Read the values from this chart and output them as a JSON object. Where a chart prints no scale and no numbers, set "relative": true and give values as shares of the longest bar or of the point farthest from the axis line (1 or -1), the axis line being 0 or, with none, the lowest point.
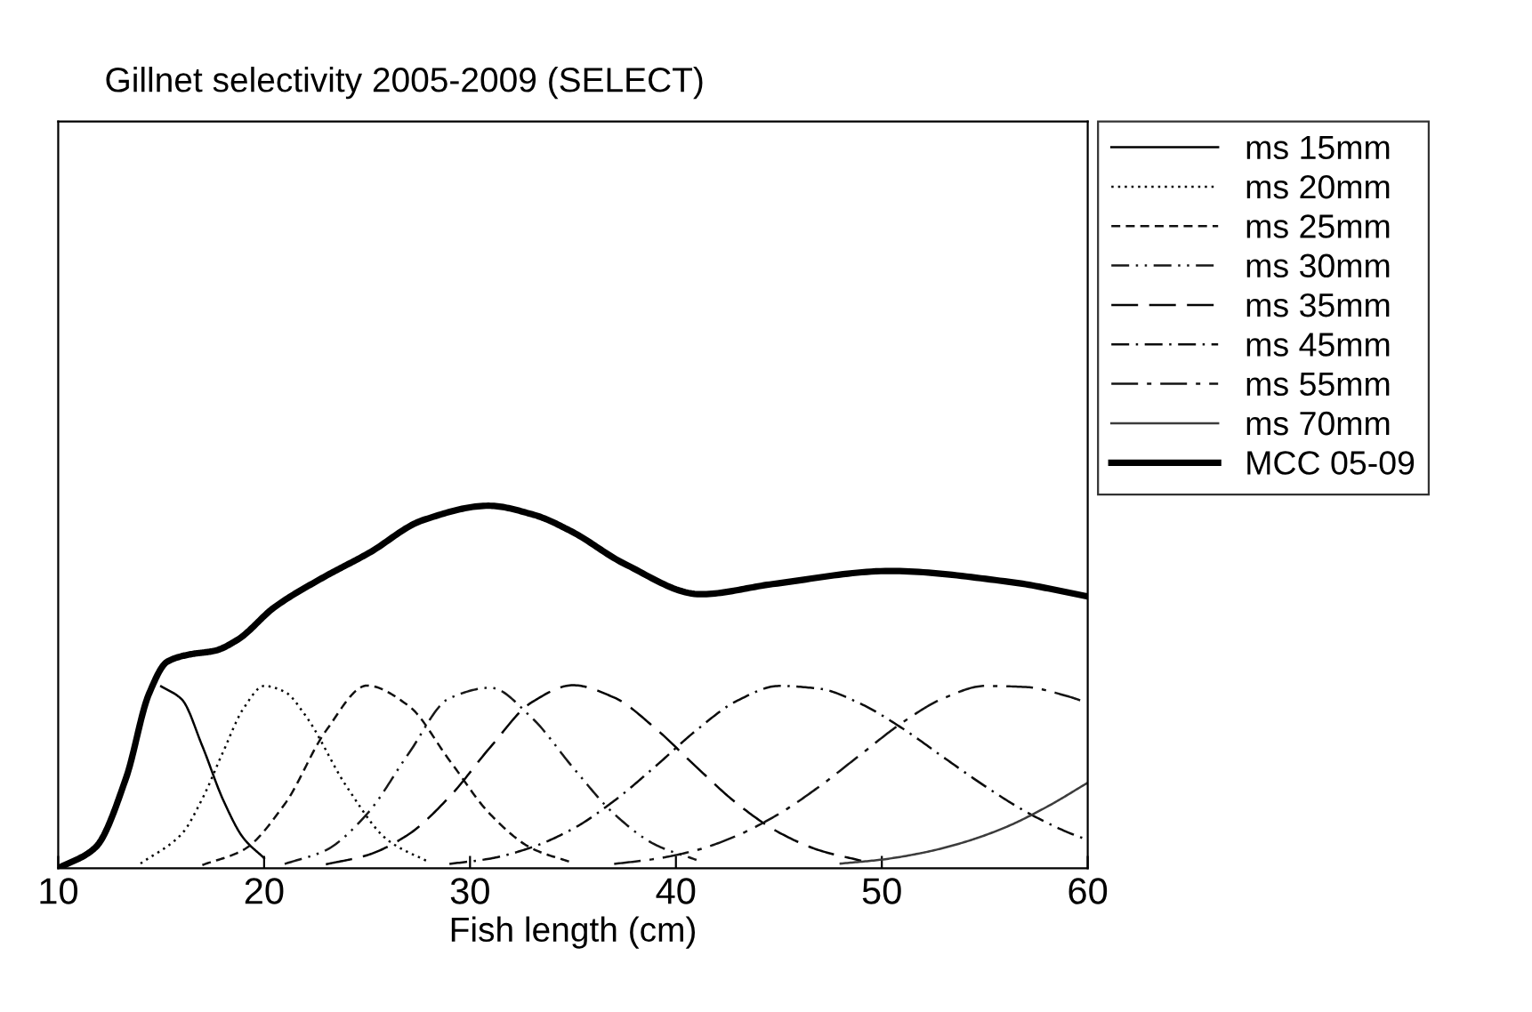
{
  "chart_data": {
    "type": "line",
    "title": "Gillnet selectivity 2005-2009 (SELECT)",
    "xlabel": "Fish length (cm)",
    "relative": true,
    "xlim": [
      10,
      60
    ],
    "xticks": [
      10,
      20,
      30,
      40,
      50,
      60
    ],
    "legend": "right",
    "grid": false,
    "series": [
      {
        "name": "ms 15mm",
        "color": "#000000",
        "line_style": "solid",
        "x": [
          15,
          16,
          17,
          18,
          19,
          20
        ],
        "values": [
          0.502,
          0.466,
          0.337,
          0.19,
          0.083,
          0.028
        ]
      },
      {
        "name": "ms 20mm",
        "color": "#080808",
        "line_style": "dotted",
        "x": [
          14,
          16,
          17,
          18,
          19,
          20,
          21,
          22,
          24,
          26,
          28
        ],
        "values": [
          0.013,
          0.095,
          0.192,
          0.32,
          0.441,
          0.503,
          0.487,
          0.422,
          0.226,
          0.078,
          0.017
        ]
      },
      {
        "name": "ms 25mm",
        "color": "#101010",
        "line_style": "dashed",
        "x": [
          17,
          19,
          21,
          23,
          25,
          27,
          29,
          31,
          33,
          35
        ],
        "values": [
          0.009,
          0.051,
          0.177,
          0.379,
          0.504,
          0.449,
          0.298,
          0.148,
          0.055,
          0.015
        ]
      },
      {
        "name": "ms 30mm",
        "color": "#181818",
        "line_style": "dashdotdot",
        "x": [
          21,
          23,
          25,
          27,
          29,
          31,
          33,
          35,
          37,
          39,
          41
        ],
        "values": [
          0.012,
          0.05,
          0.15,
          0.315,
          0.469,
          0.498,
          0.415,
          0.278,
          0.15,
          0.065,
          0.023
        ]
      },
      {
        "name": "ms 35mm",
        "color": "#040404",
        "line_style": "longdash",
        "x": [
          23,
          25,
          27,
          29,
          31,
          33,
          35,
          37,
          39,
          41,
          43,
          45,
          47,
          49
        ],
        "values": [
          0.011,
          0.036,
          0.093,
          0.197,
          0.335,
          0.458,
          0.505,
          0.471,
          0.386,
          0.279,
          0.177,
          0.099,
          0.049,
          0.021
        ]
      },
      {
        "name": "ms 45mm",
        "color": "#0c0c0c",
        "line_style": "dashdot",
        "x": [
          29,
          31,
          33,
          35,
          37,
          39,
          41,
          43,
          45,
          47,
          49,
          51,
          53,
          55,
          57,
          59,
          60
        ],
        "values": [
          0.012,
          0.027,
          0.058,
          0.109,
          0.186,
          0.281,
          0.381,
          0.463,
          0.503,
          0.495,
          0.453,
          0.386,
          0.306,
          0.227,
          0.156,
          0.1,
          0.078
        ]
      },
      {
        "name": "ms 55mm",
        "color": "#141414",
        "line_style": "longdashdot",
        "x": [
          37,
          39,
          41,
          43,
          45,
          47,
          49,
          51,
          53,
          55,
          57,
          59,
          60
        ],
        "values": [
          0.012,
          0.026,
          0.05,
          0.091,
          0.15,
          0.227,
          0.315,
          0.402,
          0.469,
          0.503,
          0.5,
          0.475,
          0.456
        ]
      },
      {
        "name": "ms 70mm",
        "color": "#3c3c3c",
        "line_style": "solid",
        "x": [
          48,
          50,
          52,
          54,
          56,
          58,
          60
        ],
        "values": [
          0.013,
          0.024,
          0.043,
          0.072,
          0.113,
          0.169,
          0.236
        ]
      },
      {
        "name": "MCC 05-09",
        "color": "#000000",
        "line_style": "solid",
        "x": [
          10,
          11.8,
          13.3,
          14.4,
          15.3,
          16.4,
          17.6,
          18.7,
          20.5,
          22.8,
          25.1,
          27.7,
          30.9,
          33.1,
          34.9,
          37.5,
          41.2,
          44.7,
          50.4,
          56.2,
          60
        ],
        "values": [
          0,
          0.057,
          0.25,
          0.48,
          0.57,
          0.59,
          0.6,
          0.63,
          0.72,
          0.8,
          0.87,
          0.96,
          1.0,
          0.975,
          0.93,
          0.84,
          0.756,
          0.784,
          0.82,
          0.79,
          0.75
        ]
      }
    ]
  }
}
